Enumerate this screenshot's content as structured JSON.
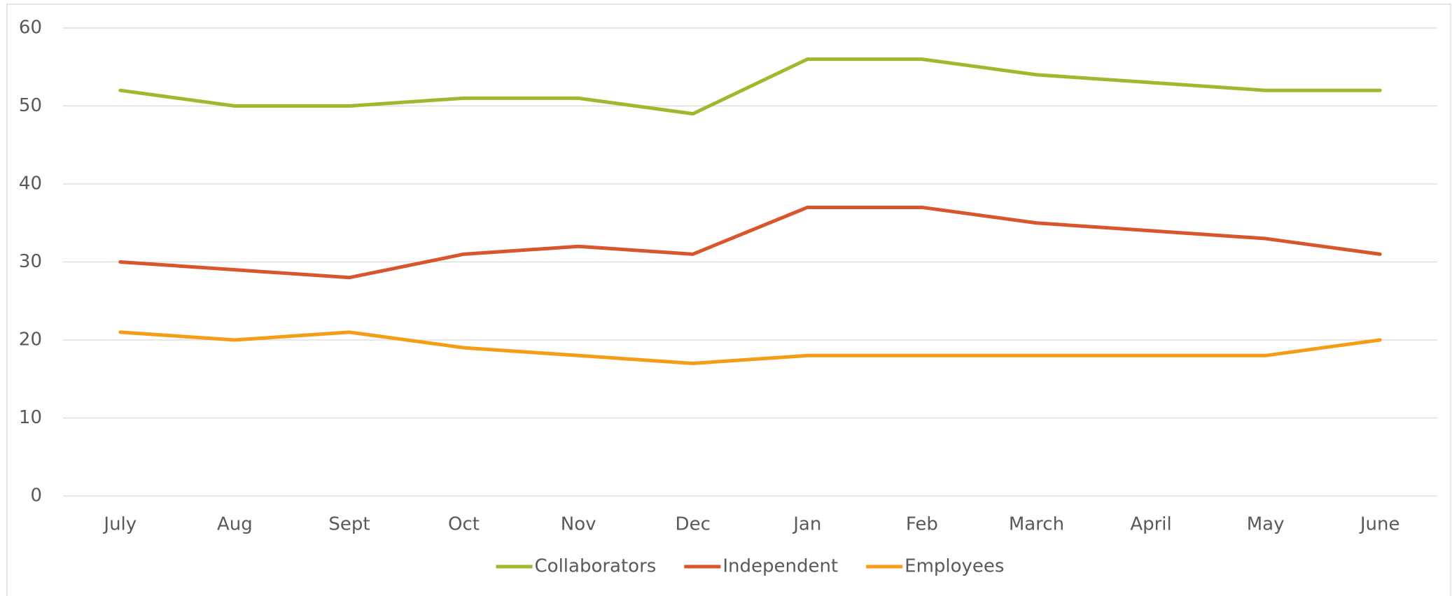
{
  "chart_data": {
    "type": "line",
    "categories": [
      "July",
      "Aug",
      "Sept",
      "Oct",
      "Nov",
      "Dec",
      "Jan",
      "Feb",
      "March",
      "April",
      "May",
      "June"
    ],
    "series": [
      {
        "name": "Collaborators",
        "color": "#9fb92f",
        "values": [
          52,
          50,
          50,
          51,
          51,
          49,
          56,
          56,
          54,
          53,
          52,
          52
        ]
      },
      {
        "name": "Independent",
        "color": "#d9552b",
        "values": [
          30,
          29,
          28,
          31,
          32,
          31,
          37,
          37,
          35,
          34,
          33,
          31
        ]
      },
      {
        "name": "Employees",
        "color": "#f59e15",
        "values": [
          21,
          20,
          21,
          19,
          18,
          17,
          18,
          18,
          18,
          18,
          18,
          20
        ]
      }
    ],
    "ylim": [
      0,
      60
    ],
    "yticks": [
      0,
      10,
      20,
      30,
      40,
      50,
      60
    ],
    "grid": true,
    "legend": "bottom"
  }
}
